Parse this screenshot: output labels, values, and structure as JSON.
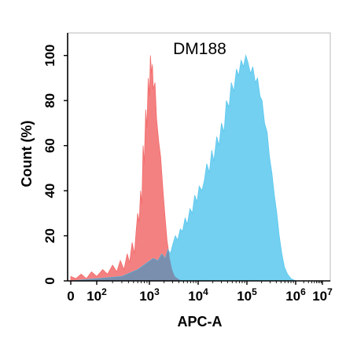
{
  "chart_data": {
    "type": "area",
    "title": "DM188",
    "xlabel": "APC-A",
    "ylabel": "Count  (%)",
    "x_scale": "biexponential-log",
    "xlim": [
      0,
      10000000
    ],
    "ylim": [
      0,
      110
    ],
    "x_ticks": [
      {
        "value": 0,
        "base": "0",
        "exp": ""
      },
      {
        "value": 100,
        "base": "10",
        "exp": "2"
      },
      {
        "value": 1000,
        "base": "10",
        "exp": "3"
      },
      {
        "value": 10000,
        "base": "10",
        "exp": "4"
      },
      {
        "value": 100000,
        "base": "10",
        "exp": "5"
      },
      {
        "value": 1000000,
        "base": "10",
        "exp": "6"
      },
      {
        "value": 10000000,
        "base": "10",
        "exp": "7"
      }
    ],
    "y_ticks": [
      "0",
      "20",
      "40",
      "60",
      "80",
      "100"
    ],
    "y_tick_values": [
      0,
      20,
      40,
      60,
      80,
      100
    ],
    "grid": false,
    "series": [
      {
        "color": "#f26b6b",
        "fill_opacity": 0.85,
        "points": [
          [
            0,
            2
          ],
          [
            20,
            1
          ],
          [
            40,
            3
          ],
          [
            60,
            1
          ],
          [
            80,
            4
          ],
          [
            100,
            2
          ],
          [
            130,
            5
          ],
          [
            160,
            3
          ],
          [
            200,
            7
          ],
          [
            240,
            4
          ],
          [
            280,
            9
          ],
          [
            330,
            5
          ],
          [
            380,
            12
          ],
          [
            420,
            8
          ],
          [
            470,
            17
          ],
          [
            520,
            12
          ],
          [
            560,
            22
          ],
          [
            600,
            30
          ],
          [
            640,
            26
          ],
          [
            680,
            40
          ],
          [
            720,
            34
          ],
          [
            760,
            60
          ],
          [
            800,
            52
          ],
          [
            850,
            76
          ],
          [
            900,
            68
          ],
          [
            950,
            90
          ],
          [
            1000,
            82
          ],
          [
            1050,
            100
          ],
          [
            1100,
            92
          ],
          [
            1150,
            96
          ],
          [
            1200,
            85
          ],
          [
            1300,
            88
          ],
          [
            1400,
            72
          ],
          [
            1550,
            62
          ],
          [
            1700,
            55
          ],
          [
            1900,
            40
          ],
          [
            2100,
            28
          ],
          [
            2300,
            18
          ],
          [
            2600,
            10
          ],
          [
            2900,
            5
          ],
          [
            3300,
            2
          ],
          [
            3800,
            1
          ],
          [
            4500,
            0
          ]
        ]
      },
      {
        "color": "#5bc8ee",
        "fill_opacity": 0.85,
        "points": [
          [
            0,
            0
          ],
          [
            100,
            1
          ],
          [
            300,
            2
          ],
          [
            600,
            5
          ],
          [
            900,
            8
          ],
          [
            1200,
            10
          ],
          [
            1500,
            9
          ],
          [
            1800,
            12
          ],
          [
            2100,
            10
          ],
          [
            2400,
            14
          ],
          [
            2700,
            12
          ],
          [
            3000,
            16
          ],
          [
            3400,
            20
          ],
          [
            3800,
            18
          ],
          [
            4300,
            23
          ],
          [
            4800,
            22
          ],
          [
            5400,
            28
          ],
          [
            6000,
            25
          ],
          [
            6800,
            32
          ],
          [
            7600,
            30
          ],
          [
            8500,
            38
          ],
          [
            9500,
            35
          ],
          [
            10500,
            42
          ],
          [
            12000,
            40
          ],
          [
            13500,
            45
          ],
          [
            15000,
            52
          ],
          [
            17000,
            48
          ],
          [
            19000,
            58
          ],
          [
            21000,
            53
          ],
          [
            24000,
            64
          ],
          [
            27000,
            60
          ],
          [
            30000,
            70
          ],
          [
            34000,
            66
          ],
          [
            38000,
            80
          ],
          [
            43000,
            77
          ],
          [
            48000,
            88
          ],
          [
            54000,
            84
          ],
          [
            61000,
            94
          ],
          [
            68000,
            91
          ],
          [
            76000,
            98
          ],
          [
            85000,
            95
          ],
          [
            95000,
            100
          ],
          [
            105000,
            97
          ],
          [
            118000,
            92
          ],
          [
            132000,
            95
          ],
          [
            148000,
            88
          ],
          [
            165000,
            90
          ],
          [
            185000,
            82
          ],
          [
            205000,
            80
          ],
          [
            230000,
            70
          ],
          [
            260000,
            66
          ],
          [
            290000,
            55
          ],
          [
            325000,
            48
          ],
          [
            365000,
            38
          ],
          [
            410000,
            30
          ],
          [
            460000,
            20
          ],
          [
            520000,
            12
          ],
          [
            590000,
            6
          ],
          [
            680000,
            3
          ],
          [
            800000,
            1
          ],
          [
            1000000,
            0
          ]
        ]
      }
    ]
  }
}
